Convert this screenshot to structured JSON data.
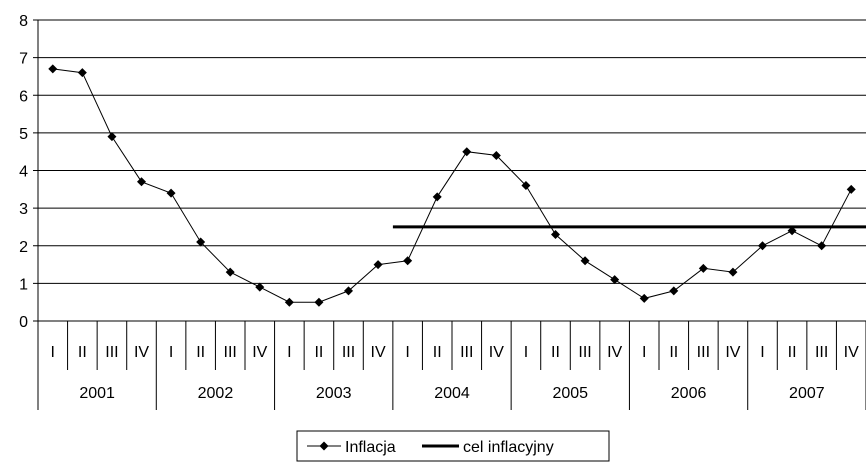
{
  "chart_data": {
    "type": "line",
    "title": "",
    "xlabel": "",
    "ylabel": "",
    "ylim": [
      0,
      8
    ],
    "yticks": [
      "0",
      "1",
      "2",
      "3",
      "4",
      "5",
      "6",
      "7",
      "8"
    ],
    "grid": true,
    "legend_position": "bottom-center",
    "years": [
      "2001",
      "2002",
      "2003",
      "2004",
      "2005",
      "2006",
      "2007"
    ],
    "quarters": [
      "I",
      "II",
      "III",
      "IV"
    ],
    "series": [
      {
        "name": "Inflacja",
        "marker": "diamond",
        "color": "#000000",
        "values": [
          6.7,
          6.6,
          4.9,
          3.7,
          3.4,
          2.1,
          1.3,
          0.9,
          0.5,
          0.5,
          0.8,
          1.5,
          1.6,
          3.3,
          4.5,
          4.4,
          3.6,
          2.3,
          1.6,
          1.1,
          0.6,
          0.8,
          1.4,
          1.3,
          2.0,
          2.4,
          2.0,
          3.5
        ]
      },
      {
        "name": "cel inflacyjny",
        "marker": "none",
        "color": "#000000",
        "start_index": 12,
        "values": [
          2.5,
          2.5,
          2.5,
          2.5,
          2.5,
          2.5,
          2.5,
          2.5,
          2.5,
          2.5,
          2.5,
          2.5,
          2.5,
          2.5,
          2.5,
          2.5
        ]
      }
    ]
  }
}
